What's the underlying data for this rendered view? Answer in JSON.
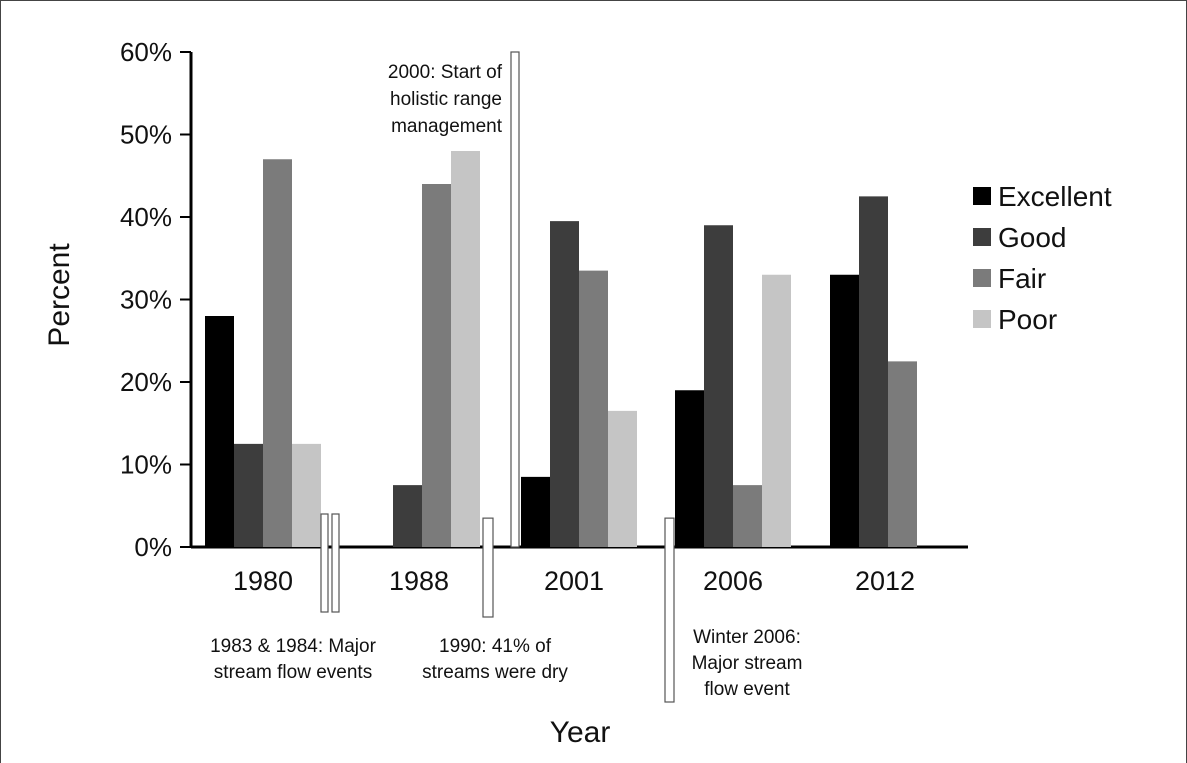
{
  "chart_data": {
    "type": "bar",
    "categories": [
      "1980",
      "1988",
      "2001",
      "2006",
      "2012"
    ],
    "series": [
      {
        "name": "Excellent",
        "color": "#000000",
        "values": [
          28,
          0,
          8.5,
          19,
          33
        ]
      },
      {
        "name": "Good",
        "color": "#3d3d3d",
        "values": [
          12.5,
          7.5,
          39.5,
          39,
          42.5
        ]
      },
      {
        "name": "Fair",
        "color": "#7b7b7b",
        "values": [
          47,
          44,
          33.5,
          7.5,
          22.5
        ]
      },
      {
        "name": "Poor",
        "color": "#c5c5c5",
        "values": [
          12.5,
          48,
          16.5,
          33,
          0
        ]
      }
    ],
    "xlabel": "Year",
    "ylabel": "Percent",
    "ylim": [
      0,
      60
    ],
    "yticks": [
      "0%",
      "10%",
      "20%",
      "30%",
      "40%",
      "50%",
      "60%"
    ],
    "grid": false,
    "legend_position": "right",
    "annotations": [
      {
        "text_lines": [
          "2000: Start of",
          "holistic range",
          "management"
        ],
        "x_between": "1988-2001",
        "y_top": 60
      },
      {
        "text_lines": [
          "1983 & 1984: Major",
          "stream flow events"
        ],
        "x_between": "1980-1988",
        "y_top": 4
      },
      {
        "text_lines": [
          "1990: 41% of",
          "streams were dry"
        ],
        "x_between": "1988-2001",
        "y_top": 3.5
      },
      {
        "text_lines": [
          "Winter 2006:",
          "Major stream",
          "flow event"
        ],
        "x_between": "2001-2006",
        "y_top": 3.5
      }
    ]
  }
}
